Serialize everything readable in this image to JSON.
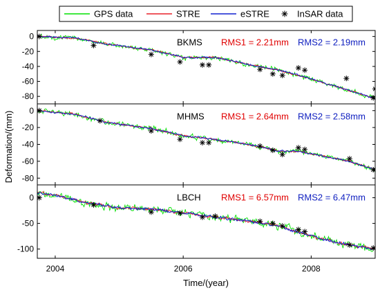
{
  "figure": {
    "xlabel": "Time/(year)",
    "ylabel": "Deformation/(mm)"
  },
  "legend": {
    "position": "top",
    "entries": [
      {
        "label": "GPS data",
        "color": "#00e000",
        "style": "line"
      },
      {
        "label": "STRE",
        "color": "#e8202a",
        "style": "line"
      },
      {
        "label": "eSTRE",
        "color": "#1020d0",
        "style": "line"
      },
      {
        "label": "InSAR data",
        "color": "#000000",
        "style": "star"
      }
    ]
  },
  "colors": {
    "gps": "#00e000",
    "stre": "#e8202a",
    "estre": "#1020d0",
    "insar": "#000000",
    "rms1_text": "#e00000",
    "rms2_text": "#1020c0"
  },
  "chart_data": [
    {
      "type": "line",
      "station": "BKMS",
      "rms1": "RMS1 = 2.21mm",
      "rms2": "RMS2 = 2.19mm",
      "xlim": [
        2003.72,
        2009.0
      ],
      "ylim": [
        -90,
        8
      ],
      "xticks": [
        2004,
        2006,
        2008
      ],
      "xtick_labels": [
        "2004",
        "2006",
        "2008"
      ],
      "yticks": [
        0,
        -20,
        -40,
        -60,
        -80
      ],
      "ytick_labels": [
        "0",
        "-20",
        "-40",
        "-60",
        "-80"
      ],
      "series": [
        {
          "name": "GPS data",
          "key": "gps",
          "noise": 3.5,
          "trend": [
            [
              2003.72,
              0
            ],
            [
              2004.3,
              -2
            ],
            [
              2004.8,
              -10
            ],
            [
              2005.5,
              -18
            ],
            [
              2006.0,
              -28
            ],
            [
              2006.5,
              -28
            ],
            [
              2007.0,
              -37
            ],
            [
              2007.5,
              -45
            ],
            [
              2007.8,
              -52
            ],
            [
              2008.2,
              -62
            ],
            [
              2008.6,
              -72
            ],
            [
              2009.0,
              -83
            ]
          ]
        },
        {
          "name": "STRE",
          "key": "stre",
          "noise": 1.2,
          "trend": [
            [
              2003.72,
              0
            ],
            [
              2004.3,
              -2
            ],
            [
              2004.8,
              -10
            ],
            [
              2005.5,
              -18
            ],
            [
              2006.0,
              -28
            ],
            [
              2006.5,
              -28
            ],
            [
              2007.0,
              -37
            ],
            [
              2007.5,
              -45
            ],
            [
              2007.8,
              -52
            ],
            [
              2008.2,
              -62
            ],
            [
              2008.6,
              -72
            ],
            [
              2009.0,
              -83
            ]
          ]
        },
        {
          "name": "eSTRE",
          "key": "estre",
          "noise": 1.2,
          "trend": [
            [
              2003.72,
              0
            ],
            [
              2004.3,
              -2
            ],
            [
              2004.8,
              -10
            ],
            [
              2005.5,
              -18
            ],
            [
              2006.0,
              -28
            ],
            [
              2006.5,
              -28
            ],
            [
              2007.0,
              -37
            ],
            [
              2007.5,
              -45
            ],
            [
              2007.8,
              -52
            ],
            [
              2008.2,
              -62
            ],
            [
              2008.6,
              -72
            ],
            [
              2009.0,
              -83
            ]
          ]
        },
        {
          "name": "InSAR data",
          "key": "insar",
          "points": [
            [
              2003.75,
              0
            ],
            [
              2004.6,
              -12
            ],
            [
              2005.5,
              -24
            ],
            [
              2005.95,
              -34
            ],
            [
              2006.3,
              -38
            ],
            [
              2006.4,
              -38
            ],
            [
              2007.2,
              -44
            ],
            [
              2007.4,
              -50
            ],
            [
              2007.55,
              -52
            ],
            [
              2007.8,
              -42
            ],
            [
              2007.9,
              -45
            ],
            [
              2008.55,
              -56
            ],
            [
              2008.97,
              -82
            ],
            [
              2009.0,
              -70
            ]
          ]
        }
      ]
    },
    {
      "type": "line",
      "station": "MHMS",
      "rms1": "RMS1 = 2.64mm",
      "rms2": "RMS2 = 2.58mm",
      "xlim": [
        2003.72,
        2009.0
      ],
      "ylim": [
        -88,
        8
      ],
      "xticks": [
        2004,
        2006,
        2008
      ],
      "xtick_labels": [
        "2004",
        "2006",
        "2008"
      ],
      "yticks": [
        0,
        -20,
        -40,
        -60,
        -80
      ],
      "ytick_labels": [
        "0",
        "-20",
        "-40",
        "-60",
        "-80"
      ],
      "series": [
        {
          "name": "GPS data",
          "key": "gps",
          "noise": 3.5,
          "trend": [
            [
              2003.72,
              0
            ],
            [
              2004.3,
              -4
            ],
            [
              2004.8,
              -14
            ],
            [
              2005.5,
              -21
            ],
            [
              2006.0,
              -30
            ],
            [
              2006.5,
              -34
            ],
            [
              2007.0,
              -40
            ],
            [
              2007.5,
              -48
            ],
            [
              2007.8,
              -48
            ],
            [
              2008.2,
              -54
            ],
            [
              2008.6,
              -60
            ],
            [
              2009.0,
              -70
            ]
          ]
        },
        {
          "name": "STRE",
          "key": "stre",
          "noise": 1.2,
          "trend": [
            [
              2003.72,
              0
            ],
            [
              2004.3,
              -4
            ],
            [
              2004.8,
              -14
            ],
            [
              2005.5,
              -21
            ],
            [
              2006.0,
              -30
            ],
            [
              2006.5,
              -34
            ],
            [
              2007.0,
              -40
            ],
            [
              2007.5,
              -48
            ],
            [
              2007.8,
              -48
            ],
            [
              2008.2,
              -54
            ],
            [
              2008.6,
              -60
            ],
            [
              2009.0,
              -70
            ]
          ]
        },
        {
          "name": "eSTRE",
          "key": "estre",
          "noise": 1.2,
          "trend": [
            [
              2003.72,
              0
            ],
            [
              2004.3,
              -4
            ],
            [
              2004.8,
              -14
            ],
            [
              2005.5,
              -21
            ],
            [
              2006.0,
              -30
            ],
            [
              2006.5,
              -34
            ],
            [
              2007.0,
              -40
            ],
            [
              2007.5,
              -48
            ],
            [
              2007.8,
              -48
            ],
            [
              2008.2,
              -54
            ],
            [
              2008.6,
              -60
            ],
            [
              2009.0,
              -70
            ]
          ]
        },
        {
          "name": "InSAR data",
          "key": "insar",
          "points": [
            [
              2003.75,
              0
            ],
            [
              2004.7,
              -12
            ],
            [
              2005.5,
              -24
            ],
            [
              2005.95,
              -34
            ],
            [
              2006.3,
              -38
            ],
            [
              2006.4,
              -38
            ],
            [
              2007.2,
              -42
            ],
            [
              2007.4,
              -47
            ],
            [
              2007.55,
              -52
            ],
            [
              2007.8,
              -44
            ],
            [
              2007.9,
              -46
            ],
            [
              2008.6,
              -57
            ],
            [
              2008.97,
              -70
            ],
            [
              2009.0,
              -70
            ]
          ]
        }
      ]
    },
    {
      "type": "line",
      "station": "LBCH",
      "rms1": "RMS1 = 6.57mm",
      "rms2": "RMS2 = 6.47mm",
      "xlim": [
        2003.72,
        2009.0
      ],
      "ylim": [
        -118,
        25
      ],
      "xticks": [
        2004,
        2006,
        2008
      ],
      "xtick_labels": [
        "2004",
        "2006",
        "2008"
      ],
      "yticks": [
        0,
        -50,
        -100
      ],
      "ytick_labels": [
        "0",
        "-50",
        "-100"
      ],
      "series": [
        {
          "name": "GPS data",
          "key": "gps",
          "noise": 8,
          "trend": [
            [
              2003.72,
              10
            ],
            [
              2004.0,
              5
            ],
            [
              2004.5,
              -10
            ],
            [
              2005.0,
              -20
            ],
            [
              2005.5,
              -22
            ],
            [
              2006.0,
              -30
            ],
            [
              2006.5,
              -38
            ],
            [
              2007.0,
              -45
            ],
            [
              2007.5,
              -55
            ],
            [
              2008.0,
              -75
            ],
            [
              2008.5,
              -90
            ],
            [
              2009.0,
              -100
            ]
          ]
        },
        {
          "name": "STRE",
          "key": "stre",
          "noise": 3,
          "trend": [
            [
              2003.72,
              10
            ],
            [
              2004.0,
              5
            ],
            [
              2004.5,
              -10
            ],
            [
              2005.0,
              -20
            ],
            [
              2005.5,
              -22
            ],
            [
              2006.0,
              -30
            ],
            [
              2006.5,
              -38
            ],
            [
              2007.0,
              -45
            ],
            [
              2007.5,
              -55
            ],
            [
              2008.0,
              -75
            ],
            [
              2008.5,
              -90
            ],
            [
              2009.0,
              -100
            ]
          ]
        },
        {
          "name": "eSTRE",
          "key": "estre",
          "noise": 3,
          "trend": [
            [
              2003.72,
              10
            ],
            [
              2004.0,
              5
            ],
            [
              2004.5,
              -10
            ],
            [
              2005.0,
              -20
            ],
            [
              2005.5,
              -22
            ],
            [
              2006.0,
              -30
            ],
            [
              2006.5,
              -38
            ],
            [
              2007.0,
              -45
            ],
            [
              2007.5,
              -55
            ],
            [
              2008.0,
              -75
            ],
            [
              2008.5,
              -90
            ],
            [
              2009.0,
              -100
            ]
          ]
        },
        {
          "name": "InSAR data",
          "key": "insar",
          "points": [
            [
              2003.75,
              0
            ],
            [
              2004.6,
              -14
            ],
            [
              2005.5,
              -28
            ],
            [
              2005.95,
              -30
            ],
            [
              2006.3,
              -38
            ],
            [
              2006.5,
              -36
            ],
            [
              2007.2,
              -46
            ],
            [
              2007.4,
              -50
            ],
            [
              2007.55,
              -55
            ],
            [
              2007.8,
              -62
            ],
            [
              2007.9,
              -66
            ],
            [
              2008.6,
              -92
            ],
            [
              2008.97,
              -98
            ]
          ]
        }
      ]
    }
  ]
}
